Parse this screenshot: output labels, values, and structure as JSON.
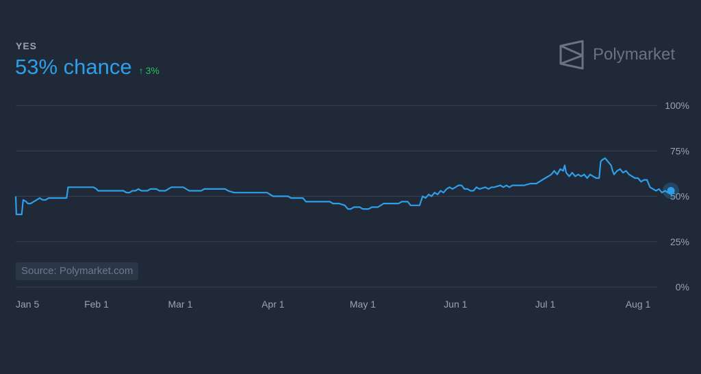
{
  "header": {
    "outcome": "YES",
    "chance_text": "53% chance",
    "change_arrow": "↑",
    "change_text": "3%"
  },
  "brand": {
    "name": "Polymarket",
    "icon": "polymarket-logo-icon"
  },
  "source": "Source: Polymarket.com",
  "colors": {
    "background": "#1f2937",
    "line": "#2e9fe8",
    "change_positive": "#22c55e",
    "grid": "#374151",
    "muted_text": "#9ca3af"
  },
  "chart_data": {
    "type": "line",
    "title": "",
    "xlabel": "",
    "ylabel": "",
    "ylim": [
      0,
      100
    ],
    "grid": true,
    "y_ticks": [
      "100%",
      "75%",
      "50%",
      "25%",
      "0%"
    ],
    "y_tick_values": [
      100,
      75,
      50,
      25,
      0
    ],
    "x_ticks": [
      "Jan 5",
      "Feb 1",
      "Mar 1",
      "Apr 1",
      "May 1",
      "Jun 1",
      "Jul 1",
      "Aug 1"
    ],
    "x_tick_dates": [
      "Jan 5",
      "Feb 1",
      "Mar 1",
      "Apr 1",
      "May 1",
      "Jun 1",
      "Jul 1",
      "Aug 1"
    ],
    "x_tick_days": [
      0,
      27,
      55,
      86,
      116,
      147,
      177,
      208
    ],
    "series": [
      {
        "name": "",
        "points": [
          [
            0,
            50
          ],
          [
            0.2,
            40
          ],
          [
            2,
            40
          ],
          [
            2.5,
            48
          ],
          [
            3.5,
            47
          ],
          [
            4,
            46
          ],
          [
            5,
            46
          ],
          [
            6,
            47
          ],
          [
            7,
            48
          ],
          [
            8,
            49
          ],
          [
            9,
            48
          ],
          [
            10,
            48
          ],
          [
            11,
            49
          ],
          [
            12,
            49
          ],
          [
            15,
            49
          ],
          [
            17,
            49
          ],
          [
            17.5,
            55
          ],
          [
            20,
            55
          ],
          [
            23,
            55
          ],
          [
            26,
            55
          ],
          [
            27,
            54
          ],
          [
            27.5,
            53
          ],
          [
            31,
            53
          ],
          [
            34,
            53
          ],
          [
            36,
            53
          ],
          [
            37,
            52
          ],
          [
            38,
            52
          ],
          [
            39,
            53
          ],
          [
            40,
            53
          ],
          [
            41,
            54
          ],
          [
            42,
            53
          ],
          [
            44,
            53
          ],
          [
            45,
            54
          ],
          [
            47,
            54
          ],
          [
            48,
            53
          ],
          [
            50,
            53
          ],
          [
            51,
            54
          ],
          [
            52,
            55
          ],
          [
            56,
            55
          ],
          [
            57,
            54
          ],
          [
            58,
            53
          ],
          [
            62,
            53
          ],
          [
            63,
            54
          ],
          [
            70,
            54
          ],
          [
            71,
            53
          ],
          [
            73,
            52
          ],
          [
            80,
            52
          ],
          [
            84,
            52
          ],
          [
            86,
            50
          ],
          [
            91,
            50
          ],
          [
            92,
            49
          ],
          [
            96,
            49
          ],
          [
            97,
            47
          ],
          [
            101,
            47
          ],
          [
            105,
            47
          ],
          [
            106,
            46
          ],
          [
            108,
            46
          ],
          [
            110,
            45
          ],
          [
            111,
            43
          ],
          [
            112,
            43
          ],
          [
            113,
            44
          ],
          [
            115,
            44
          ],
          [
            116,
            43
          ],
          [
            118,
            43
          ],
          [
            119,
            44
          ],
          [
            121,
            44
          ],
          [
            122,
            45
          ],
          [
            123,
            46
          ],
          [
            128,
            46
          ],
          [
            129,
            47
          ],
          [
            131,
            47
          ],
          [
            132,
            45
          ],
          [
            135,
            45
          ],
          [
            136,
            50
          ],
          [
            137,
            49
          ],
          [
            138,
            51
          ],
          [
            139,
            50
          ],
          [
            140,
            52
          ],
          [
            141,
            51
          ],
          [
            142,
            53
          ],
          [
            143,
            52
          ],
          [
            144,
            54
          ],
          [
            145,
            55
          ],
          [
            146,
            54
          ],
          [
            147,
            55
          ],
          [
            148,
            56
          ],
          [
            149,
            56
          ],
          [
            150,
            54
          ],
          [
            151,
            54
          ],
          [
            152,
            53
          ],
          [
            153,
            53
          ],
          [
            154,
            55
          ],
          [
            155,
            54
          ],
          [
            157,
            55
          ],
          [
            158,
            54
          ],
          [
            159,
            55
          ],
          [
            160,
            55
          ],
          [
            162,
            56
          ],
          [
            163,
            55
          ],
          [
            164,
            56
          ],
          [
            165,
            55
          ],
          [
            166,
            56
          ],
          [
            170,
            56
          ],
          [
            172,
            57
          ],
          [
            174,
            57
          ],
          [
            175,
            58
          ],
          [
            176,
            59
          ],
          [
            177,
            60
          ],
          [
            178,
            61
          ],
          [
            179,
            62
          ],
          [
            180,
            64
          ],
          [
            181,
            62
          ],
          [
            182,
            65
          ],
          [
            183,
            64
          ],
          [
            183.5,
            67
          ],
          [
            184,
            63
          ],
          [
            185,
            61
          ],
          [
            186,
            63
          ],
          [
            187,
            61
          ],
          [
            188,
            62
          ],
          [
            189,
            61
          ],
          [
            190,
            62
          ],
          [
            191,
            60
          ],
          [
            192,
            62
          ],
          [
            193,
            61
          ],
          [
            194,
            60
          ],
          [
            195,
            60
          ],
          [
            195.5,
            69
          ],
          [
            196,
            70
          ],
          [
            197,
            71
          ],
          [
            197.5,
            70
          ],
          [
            198,
            69
          ],
          [
            199,
            67
          ],
          [
            199.5,
            64
          ],
          [
            200,
            62
          ],
          [
            201,
            64
          ],
          [
            202,
            65
          ],
          [
            203,
            63
          ],
          [
            204,
            64
          ],
          [
            205,
            62
          ],
          [
            206,
            61
          ],
          [
            207,
            60
          ],
          [
            208,
            60
          ],
          [
            209,
            58
          ],
          [
            210,
            59
          ],
          [
            211,
            59
          ],
          [
            212,
            55
          ],
          [
            213,
            54
          ],
          [
            214,
            53
          ],
          [
            215,
            54
          ],
          [
            216,
            52
          ],
          [
            217,
            53
          ],
          [
            218,
            52
          ],
          [
            219,
            53
          ]
        ]
      }
    ]
  }
}
